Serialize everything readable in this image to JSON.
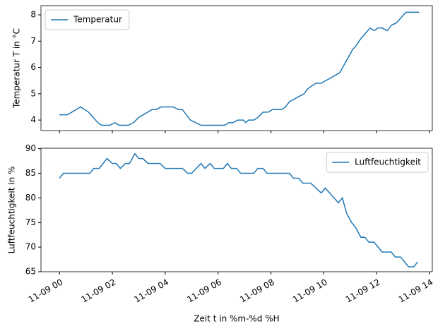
{
  "chart_data": [
    {
      "type": "line",
      "ylabel": "Temperatur T in °C",
      "x": [
        0,
        0.3,
        0.8,
        1.1,
        1.45,
        1.6,
        1.9,
        2.1,
        2.25,
        2.6,
        2.8,
        3.0,
        3.5,
        3.65,
        3.85,
        4.3,
        4.5,
        4.65,
        4.95,
        5.35,
        6.25,
        6.4,
        6.55,
        6.75,
        6.95,
        7.05,
        7.15,
        7.35,
        7.5,
        7.7,
        7.9,
        8.05,
        8.4,
        8.55,
        8.7,
        9.25,
        9.4,
        9.7,
        9.9,
        10.6,
        11.1,
        11.2,
        11.4,
        11.75,
        11.9,
        12.05,
        12.2,
        12.4,
        12.55,
        12.75,
        13.1,
        13.6
      ],
      "series": [
        {
          "name": "Temperatur",
          "color": "#1f77b4",
          "values": [
            4.2,
            4.2,
            4.5,
            4.3,
            3.9,
            3.8,
            3.8,
            3.9,
            3.8,
            3.8,
            3.9,
            4.1,
            4.4,
            4.4,
            4.5,
            4.5,
            4.4,
            4.4,
            4.0,
            3.8,
            3.8,
            3.9,
            3.9,
            4.0,
            4.0,
            3.9,
            4.0,
            4.0,
            4.1,
            4.3,
            4.3,
            4.4,
            4.4,
            4.5,
            4.7,
            5.0,
            5.2,
            5.4,
            5.4,
            5.8,
            6.7,
            6.8,
            7.1,
            7.5,
            7.4,
            7.5,
            7.5,
            7.4,
            7.6,
            7.7,
            8.1,
            8.1
          ]
        }
      ],
      "xlim": [
        -0.7,
        14.1
      ],
      "ylim": [
        3.6,
        8.35
      ],
      "yticks": [
        4,
        5,
        6,
        7,
        8
      ],
      "legend": "upper left"
    },
    {
      "type": "line",
      "ylabel": "Luftfeuchtigkeit  in %",
      "xlabel": "Zeit t in %m-%d %H",
      "x": [
        0,
        0.15,
        1.15,
        1.3,
        1.5,
        1.8,
        2.0,
        2.15,
        2.3,
        2.5,
        2.65,
        2.85,
        3.0,
        3.15,
        3.35,
        3.8,
        4.0,
        4.65,
        4.85,
        5.0,
        5.35,
        5.5,
        5.7,
        5.85,
        6.2,
        6.35,
        6.5,
        6.7,
        6.85,
        7.35,
        7.5,
        7.7,
        7.85,
        8.7,
        8.85,
        9.05,
        9.2,
        9.5,
        9.9,
        10.05,
        10.55,
        10.7,
        10.85,
        11.05,
        11.2,
        11.4,
        11.55,
        11.7,
        11.9,
        12.2,
        12.55,
        12.7,
        12.9,
        13.2,
        13.4,
        13.55
      ],
      "series": [
        {
          "name": "Luftfeuchtigkeit",
          "color": "#1f77b4",
          "values": [
            84,
            85,
            85,
            86,
            86,
            88,
            87,
            87,
            86,
            87,
            87,
            89,
            88,
            88,
            87,
            87,
            86,
            86,
            85,
            85,
            87,
            86,
            87,
            86,
            86,
            87,
            86,
            86,
            85,
            85,
            86,
            86,
            85,
            85,
            84,
            84,
            83,
            83,
            81,
            82,
            79,
            80,
            77,
            75,
            74,
            72,
            72,
            71,
            71,
            69,
            69,
            68,
            68,
            66,
            66,
            67
          ]
        }
      ],
      "xlim": [
        -0.7,
        14.1
      ],
      "xticks": [
        {
          "value": 0,
          "label": "11-09 00"
        },
        {
          "value": 2,
          "label": "11-09 02"
        },
        {
          "value": 4,
          "label": "11-09 04"
        },
        {
          "value": 6,
          "label": "11-09 06"
        },
        {
          "value": 8,
          "label": "11-09 08"
        },
        {
          "value": 10,
          "label": "11-09 10"
        },
        {
          "value": 12,
          "label": "11-09 12"
        },
        {
          "value": 14,
          "label": "11-09 14"
        }
      ],
      "ylim": [
        65,
        90.1
      ],
      "yticks": [
        65,
        70,
        75,
        80,
        85,
        90
      ],
      "legend": "upper right"
    }
  ]
}
